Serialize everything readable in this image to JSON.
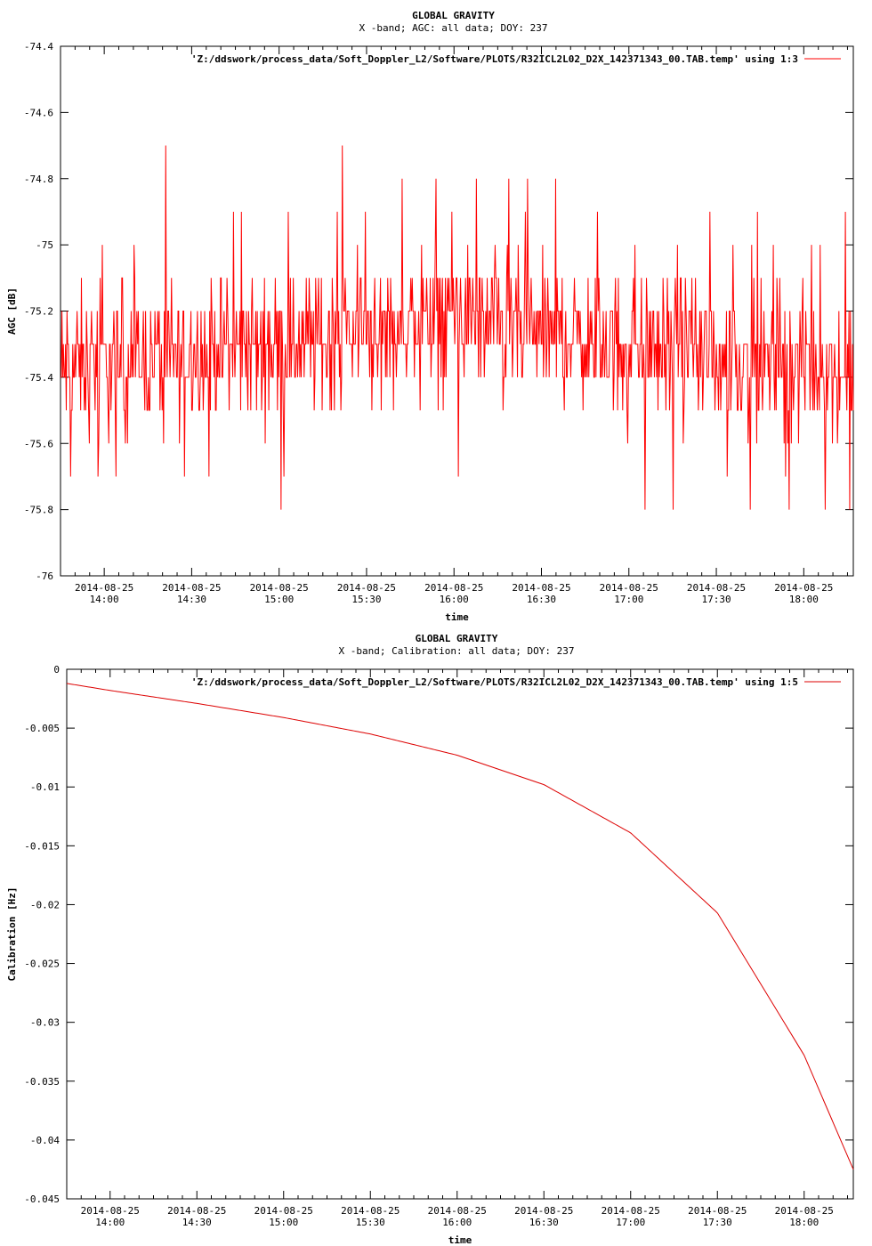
{
  "chart_data": [
    {
      "type": "line",
      "title": "GLOBAL GRAVITY",
      "subtitle": "X -band; AGC: all data; DOY: 237",
      "xlabel": "time",
      "ylabel": "AGC [dB]",
      "ylim": [
        -76,
        -74.4
      ],
      "yticks": [
        -74.4,
        -74.6,
        -74.8,
        -75,
        -75.2,
        -75.4,
        -75.6,
        -75.8,
        -76
      ],
      "ytick_labels": [
        "-74.4",
        "-74.6",
        "-74.8",
        "-75",
        "-75.2",
        "-75.4",
        "-75.6",
        "-75.8",
        "-76"
      ],
      "xlim": [
        "2014-08-25 13:45",
        "2014-08-25 18:17"
      ],
      "xticks": [
        "14:00",
        "14:30",
        "15:00",
        "15:30",
        "16:00",
        "16:30",
        "17:00",
        "17:30",
        "18:00"
      ],
      "xtick_date": "2014-08-25",
      "legend": {
        "position": "top-right",
        "label": "'Z:/ddswork/process_data/Soft_Doppler_L2/Software/PLOTS/R32ICL2L02_D2X_142371343_00.TAB.temp' using 1:3"
      },
      "grid": false,
      "series": [
        {
          "name": "'Z:/ddswork/process_data/Soft_Doppler_L2/Software/PLOTS/R32ICL2L02_D2X_142371343_00.TAB.temp' using 1:3",
          "color": "#ff0000",
          "time_start": "2014-08-25 13:45",
          "time_end": "2014-08-25 18:17",
          "baseline": [
            [
              0,
              -75.38
            ],
            [
              0.25,
              -75.3
            ],
            [
              0.5,
              -75.22
            ],
            [
              0.75,
              -75.32
            ],
            [
              1,
              -75.38
            ]
          ],
          "noise_range": [
            -0.3,
            0.3
          ],
          "step": 0.1
        }
      ]
    },
    {
      "type": "line",
      "title": "GLOBAL GRAVITY",
      "subtitle": "X -band; Calibration: all data; DOY: 237",
      "xlabel": "time",
      "ylabel": "Calibration [Hz]",
      "ylim": [
        -0.045,
        0
      ],
      "yticks": [
        0,
        -0.005,
        -0.01,
        -0.015,
        -0.02,
        -0.025,
        -0.03,
        -0.035,
        -0.04,
        -0.045
      ],
      "ytick_labels": [
        "0",
        "-0.005",
        "-0.01",
        "-0.015",
        "-0.02",
        "-0.025",
        "-0.03",
        "-0.035",
        "-0.04",
        "-0.045"
      ],
      "xlim": [
        "2014-08-25 13:45",
        "2014-08-25 18:17"
      ],
      "xticks": [
        "14:00",
        "14:30",
        "15:00",
        "15:30",
        "16:00",
        "16:30",
        "17:00",
        "17:30",
        "18:00"
      ],
      "xtick_date": "2014-08-25",
      "legend": {
        "position": "top-right",
        "label": "'Z:/ddswork/process_data/Soft_Doppler_L2/Software/PLOTS/R32ICL2L02_D2X_142371343_00.TAB.temp' using 1:5"
      },
      "grid": false,
      "series": [
        {
          "name": "'Z:/ddswork/process_data/Soft_Doppler_L2/Software/PLOTS/R32ICL2L02_D2X_142371343_00.TAB.temp' using 1:5",
          "color": "#dd0000",
          "x": [
            "2014-08-25 13:45",
            "2014-08-25 14:00",
            "2014-08-25 14:30",
            "2014-08-25 15:00",
            "2014-08-25 15:30",
            "2014-08-25 16:00",
            "2014-08-25 16:30",
            "2014-08-25 17:00",
            "2014-08-25 17:30",
            "2014-08-25 18:00",
            "2014-08-25 18:17"
          ],
          "y": [
            -0.0012,
            -0.0018,
            -0.0029,
            -0.0041,
            -0.0055,
            -0.0073,
            -0.0098,
            -0.0139,
            -0.0207,
            -0.0328,
            -0.0425
          ]
        }
      ]
    }
  ]
}
